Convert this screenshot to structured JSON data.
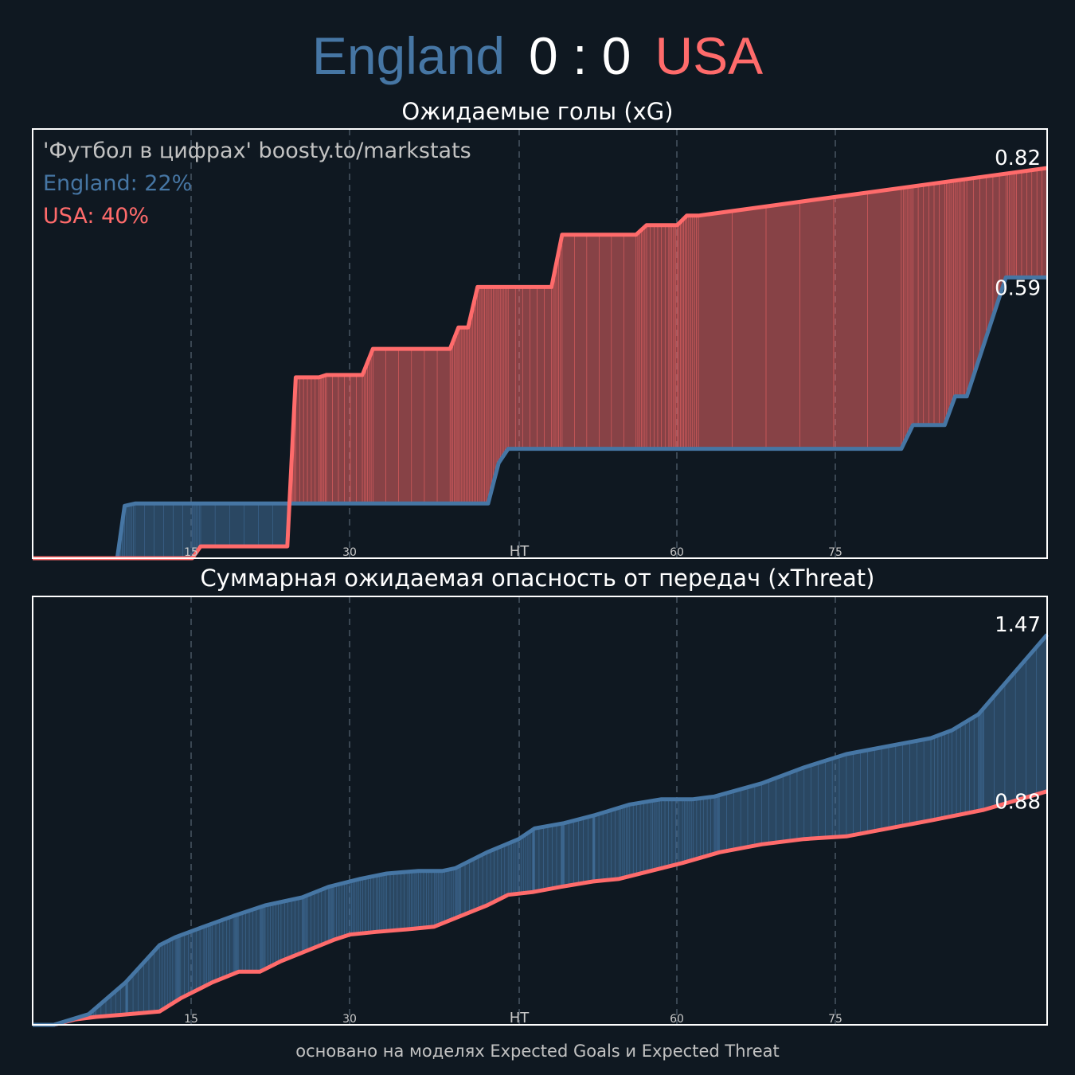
{
  "header": {
    "home_team": "England",
    "score": "0 : 0",
    "away_team": "USA"
  },
  "colors": {
    "home": "#4676a4",
    "away": "#ff6b6b",
    "background": "#0f1821",
    "frame": "#ffffff"
  },
  "footer": "основано на моделях Expected Goals и Expected Threat",
  "chart_data": [
    {
      "type": "area",
      "title": "Ожидаемые голы (xG)",
      "annotations": [
        "'Футбол в цифрах' boosty.to/markstats",
        "England: 22%",
        "USA: 40%"
      ],
      "x_ticks": [
        "15",
        "30",
        "HT",
        "60",
        "75"
      ],
      "xlim": [
        0,
        96
      ],
      "ylim": [
        0,
        0.82
      ],
      "grid": "vertical dashed",
      "end_labels": [
        "0.82",
        "0.59"
      ],
      "series": [
        {
          "name": "England",
          "color": "#4676a4",
          "x": [
            0,
            8,
            8.7,
            9.7,
            43.1,
            44.1,
            45,
            82.2,
            83.3,
            86.3,
            87.3,
            88.4,
            92.1,
            93.1,
            96
          ],
          "y": [
            0,
            0,
            0.11,
            0.115,
            0.115,
            0.2,
            0.23,
            0.23,
            0.28,
            0.28,
            0.34,
            0.34,
            0.59,
            0.59,
            0.59
          ]
        },
        {
          "name": "USA",
          "color": "#ff6b6b",
          "x": [
            0,
            15.1,
            15.9,
            24.1,
            24.9,
            27.1,
            27.8,
            31.2,
            32.2,
            39.5,
            40.3,
            41.2,
            42.1,
            49.1,
            50.1,
            57.1,
            58.1,
            60.2,
            61,
            61.9,
            63,
            96
          ],
          "y": [
            0,
            0,
            0.025,
            0.025,
            0.38,
            0.38,
            0.385,
            0.385,
            0.44,
            0.44,
            0.485,
            0.485,
            0.57,
            0.57,
            0.68,
            0.68,
            0.7,
            0.7,
            0.7,
            0.72,
            0.72,
            0.82
          ]
        }
      ]
    },
    {
      "type": "area",
      "title": "Суммарная ожидаемая опасность от передач (xThreat)",
      "x_ticks": [
        "15",
        "30",
        "HT",
        "60",
        "75"
      ],
      "xlim": [
        0,
        96
      ],
      "ylim": [
        0,
        1.47
      ],
      "grid": "vertical dashed",
      "end_labels": [
        "1.47",
        "0.88"
      ],
      "series": [
        {
          "name": "England",
          "color": "#4676a4",
          "x": [
            0,
            2,
            5.3,
            8.8,
            12,
            13.5,
            16.2,
            19,
            22,
            25.5,
            28,
            31,
            33.5,
            36.5,
            38.8,
            40,
            43,
            46,
            47.5,
            50.3,
            53.2,
            56.5,
            59.5,
            62.5,
            64.5,
            69,
            73,
            77,
            81,
            85,
            87,
            89.5,
            96
          ],
          "y": [
            0,
            0,
            0.04,
            0.16,
            0.3,
            0.33,
            0.37,
            0.41,
            0.45,
            0.48,
            0.52,
            0.55,
            0.57,
            0.58,
            0.58,
            0.59,
            0.65,
            0.7,
            0.74,
            0.76,
            0.79,
            0.83,
            0.85,
            0.85,
            0.86,
            0.91,
            0.97,
            1.02,
            1.05,
            1.08,
            1.11,
            1.17,
            1.47
          ]
        },
        {
          "name": "USA",
          "color": "#ff6b6b",
          "x": [
            0,
            2,
            4,
            6,
            9,
            12,
            14,
            17,
            19.5,
            21.5,
            23.5,
            26,
            28.5,
            30,
            32.5,
            35.5,
            38,
            40.5,
            43,
            45,
            47.3,
            50,
            53,
            55.5,
            58.5,
            61.5,
            65,
            69,
            73,
            77,
            81,
            85,
            90,
            96
          ],
          "y": [
            0,
            0,
            0.02,
            0.03,
            0.04,
            0.05,
            0.1,
            0.16,
            0.2,
            0.2,
            0.24,
            0.28,
            0.32,
            0.34,
            0.35,
            0.36,
            0.37,
            0.41,
            0.45,
            0.49,
            0.5,
            0.52,
            0.54,
            0.55,
            0.58,
            0.61,
            0.65,
            0.68,
            0.7,
            0.71,
            0.74,
            0.77,
            0.81,
            0.88
          ]
        }
      ]
    }
  ]
}
